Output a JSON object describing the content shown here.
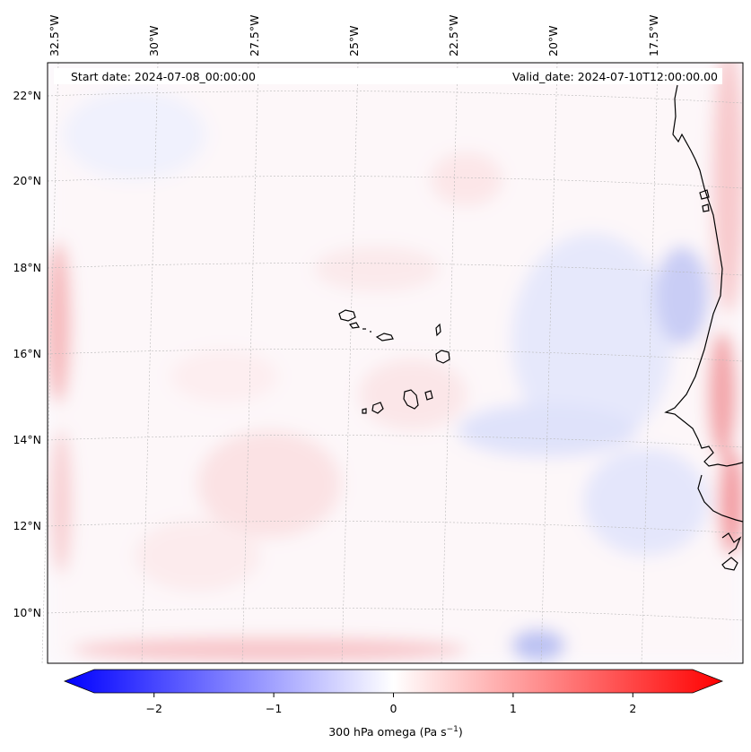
{
  "map": {
    "header": {
      "start_date": "Start date: 2024-07-08_00:00:00",
      "valid_date": "Valid_date: 2024-07-10T12:00:00.00"
    },
    "longitude_labels": [
      "32.5°W",
      "30°W",
      "27.5°W",
      "25°W",
      "22.5°W",
      "20°W",
      "17.5°W"
    ],
    "latitude_labels": [
      "22°N",
      "20°N",
      "18°N",
      "16°N",
      "14°N",
      "12°N",
      "10°N"
    ],
    "field_colors": {
      "negative": "#0000ff",
      "zero": "#ffffff",
      "positive": "#ff0000",
      "coastline": "#000000",
      "gridline": "#b0b0b0"
    }
  },
  "colorbar": {
    "ticks": [
      "−2",
      "−1",
      "0",
      "1",
      "2"
    ],
    "tick_values": [
      -2,
      -1,
      0,
      1,
      2
    ],
    "range": [
      -2.5,
      2.5
    ],
    "label_main": "300 hPa omega (Pa s",
    "label_exp": "−1",
    "label_close": ")"
  }
}
